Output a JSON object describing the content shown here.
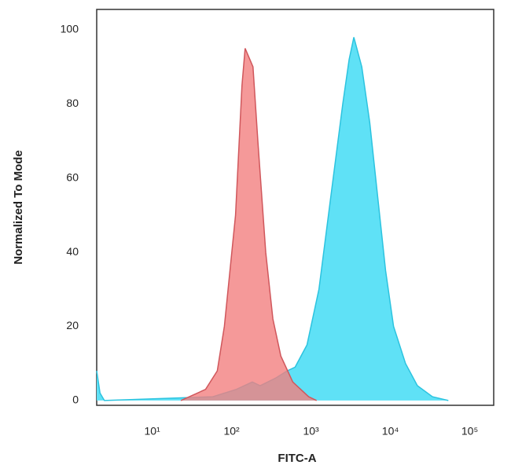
{
  "chart_data": {
    "type": "area",
    "xlabel": "FITC-A",
    "ylabel": "Normalized To Mode",
    "xscale": "log",
    "xlim": [
      2,
      200000
    ],
    "xticks": [
      {
        "value": 10,
        "label": "10¹"
      },
      {
        "value": 100,
        "label": "10²"
      },
      {
        "value": 1000,
        "label": "10³"
      },
      {
        "value": 10000,
        "label": "10⁴"
      },
      {
        "value": 100000,
        "label": "10⁵"
      }
    ],
    "ylim": [
      -1.3,
      105.5
    ],
    "yticks": [
      0,
      20,
      40,
      60,
      80,
      100
    ],
    "series": [
      {
        "color": "#5fe1f6",
        "edge": "#2cc3df",
        "x": [
          2.0,
          2.2,
          2.5,
          12,
          58,
          115,
          182,
          229,
          355,
          501,
          631,
          891,
          1259,
          1778,
          2512,
          3020,
          3467,
          4365,
          5495,
          6918,
          8710,
          10965,
          15488,
          21878,
          33884,
          53703
        ],
        "values": [
          8,
          2,
          0,
          0.5,
          1,
          3,
          5,
          4,
          6,
          8,
          9,
          15,
          30,
          55,
          80,
          92,
          98,
          90,
          75,
          55,
          35,
          20,
          10,
          4,
          1,
          0
        ]
      },
      {
        "color": "#f27f80",
        "edge": "#d0575c",
        "x": [
          23,
          47,
          66,
          81,
          112,
          135,
          148,
          186,
          214,
          269,
          331,
          417,
          589,
          933,
          1175
        ],
        "values": [
          0,
          3,
          8,
          20,
          50,
          85,
          95,
          90,
          70,
          40,
          22,
          12,
          5,
          1,
          0
        ]
      }
    ]
  }
}
